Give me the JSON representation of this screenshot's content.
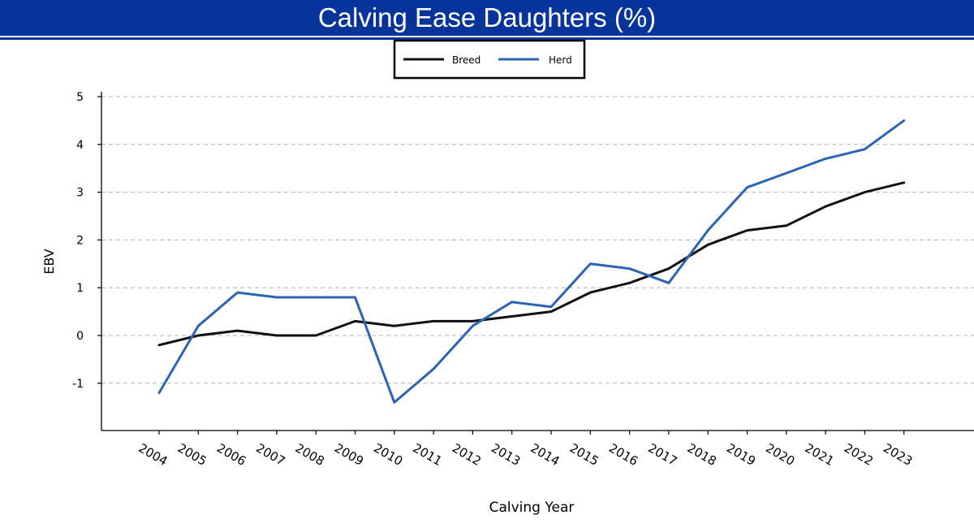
{
  "header": {
    "title": "Calving Ease Daughters (%)"
  },
  "colors": {
    "header_bg": "#06349a",
    "breed": "#111111",
    "herd": "#2a64b4",
    "grid": "#b3b3b3"
  },
  "chart_data": {
    "type": "line",
    "title": "Calving Ease Daughters (%)",
    "xlabel": "Calving Year",
    "ylabel": "EBV",
    "x": [
      "2004",
      "2005",
      "2006",
      "2007",
      "2008",
      "2009",
      "2010",
      "2011",
      "2012",
      "2013",
      "2014",
      "2015",
      "2016",
      "2017",
      "2018",
      "2019",
      "2020",
      "2021",
      "2022",
      "2023"
    ],
    "yticks": [
      -1,
      0,
      1,
      2,
      3,
      4,
      5
    ],
    "ylim": [
      -2,
      5.1
    ],
    "grid": "horizontal dashed",
    "legend_position": "top-center",
    "series": [
      {
        "name": "Breed",
        "color": "#111111",
        "values": [
          -0.2,
          0.0,
          0.1,
          0.0,
          0.0,
          0.3,
          0.2,
          0.3,
          0.3,
          0.4,
          0.5,
          0.9,
          1.1,
          1.4,
          1.9,
          2.2,
          2.3,
          2.7,
          3.0,
          3.2
        ]
      },
      {
        "name": "Herd",
        "color": "#2a64b4",
        "values": [
          -1.2,
          0.2,
          0.9,
          0.8,
          0.8,
          0.8,
          -1.4,
          -0.7,
          0.2,
          0.7,
          0.6,
          1.5,
          1.4,
          1.1,
          2.2,
          3.1,
          3.4,
          3.7,
          3.9,
          4.5
        ]
      }
    ]
  }
}
